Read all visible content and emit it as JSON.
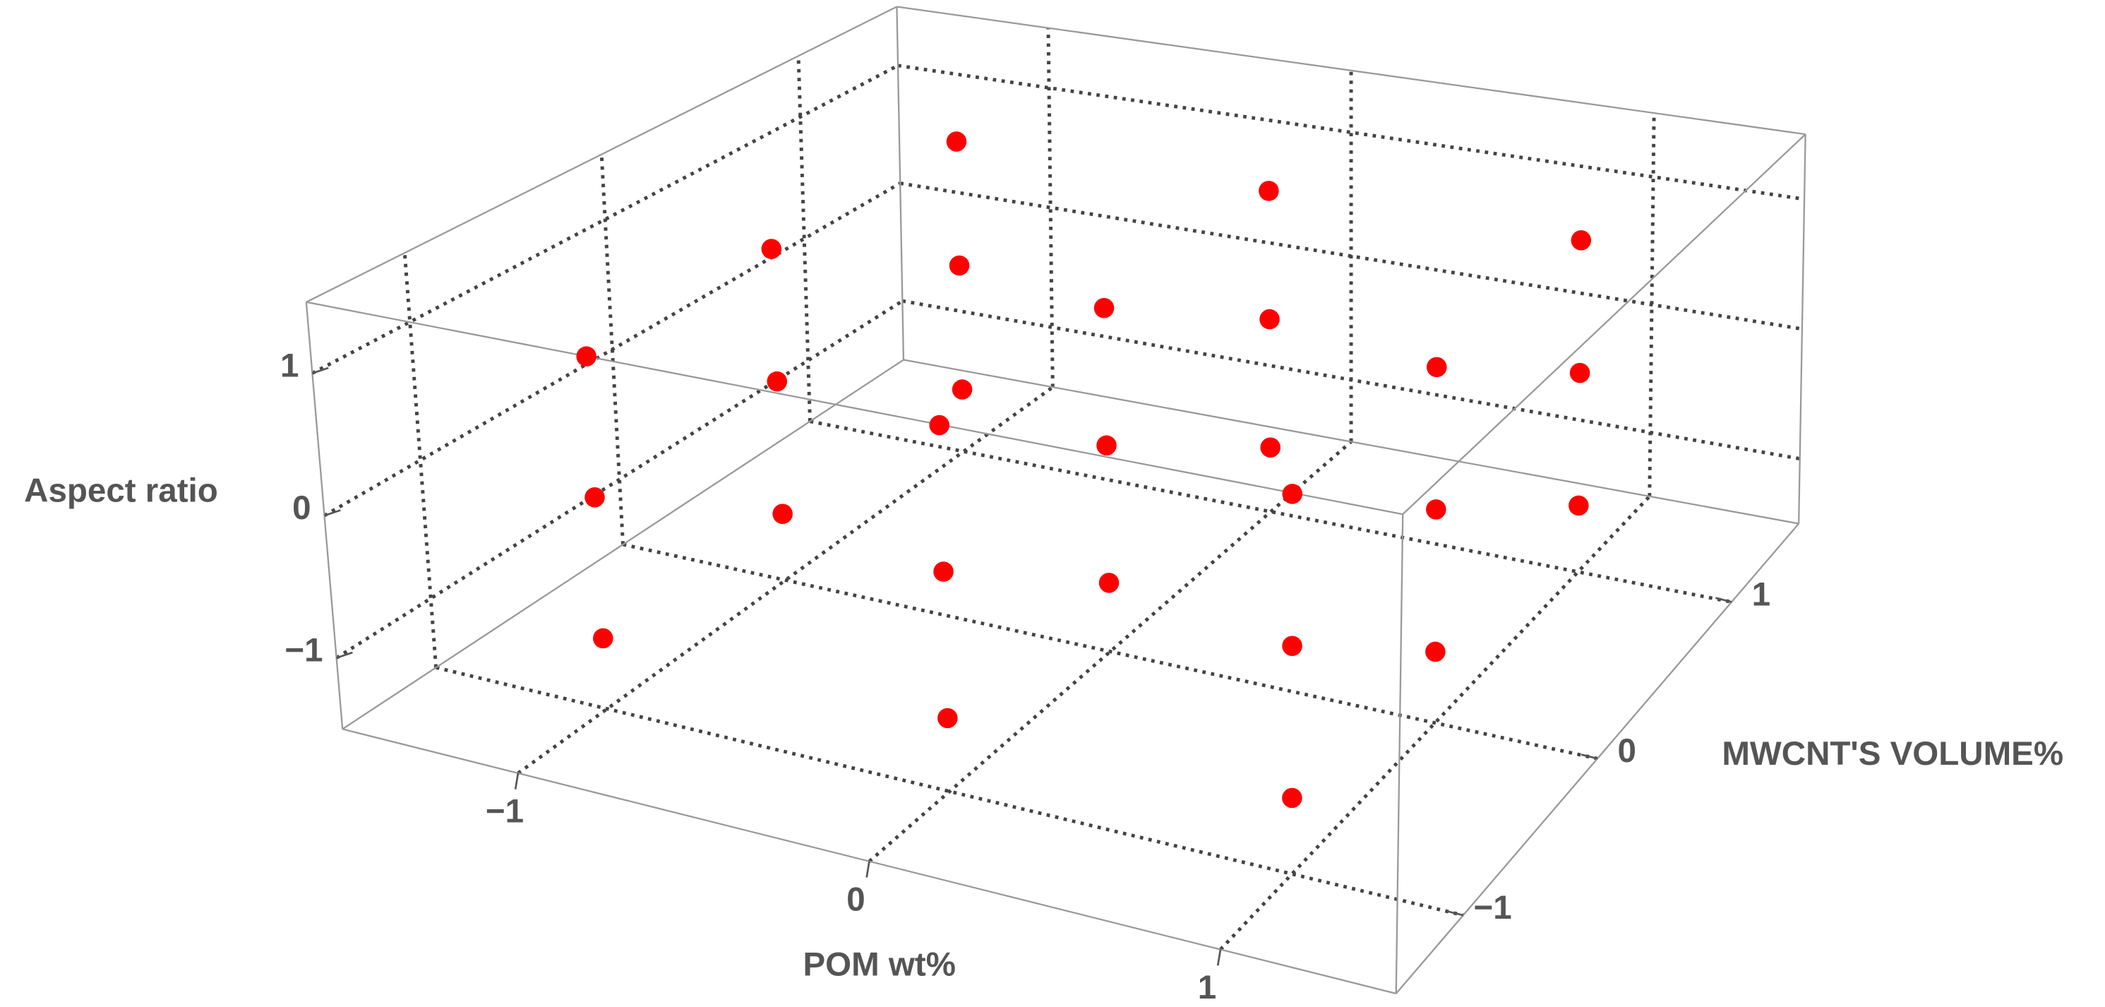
{
  "chart_data": {
    "type": "scatter3d",
    "xlabel": "POM wt%",
    "ylabel": "MWCNT'S VOLUME%",
    "zlabel": "Aspect ratio",
    "x": [
      -1,
      -1,
      -1,
      -1,
      -1,
      -1,
      -1,
      -1,
      -1,
      0,
      0,
      0,
      0,
      0,
      0,
      0,
      0,
      0,
      1,
      1,
      1,
      1,
      1,
      1,
      1,
      1,
      1
    ],
    "y": [
      -1,
      -1,
      -1,
      0,
      0,
      0,
      1,
      1,
      1,
      -1,
      -1,
      -1,
      0,
      0,
      0,
      1,
      1,
      1,
      -1,
      -1,
      -1,
      0,
      0,
      0,
      1,
      1,
      1
    ],
    "z": [
      -1,
      0,
      1,
      -1,
      0,
      1,
      -1,
      0,
      1,
      -1,
      0,
      1,
      -1,
      0,
      1,
      -1,
      0,
      1,
      -1,
      0,
      1,
      -1,
      0,
      1,
      -1,
      0,
      1
    ],
    "color": "#ff0000",
    "xlim": [
      -1.5,
      1.5
    ],
    "ylim": [
      -1.5,
      1.5
    ],
    "zlim": [
      -1.5,
      1.5
    ],
    "xticks": [
      {
        "value": -1,
        "label": "−1"
      },
      0,
      1
    ],
    "yticks": [
      {
        "value": -1,
        "label": "−1"
      },
      0,
      1
    ],
    "zticks": [
      {
        "value": -1,
        "label": "−1"
      },
      0,
      1
    ],
    "grid": true
  }
}
